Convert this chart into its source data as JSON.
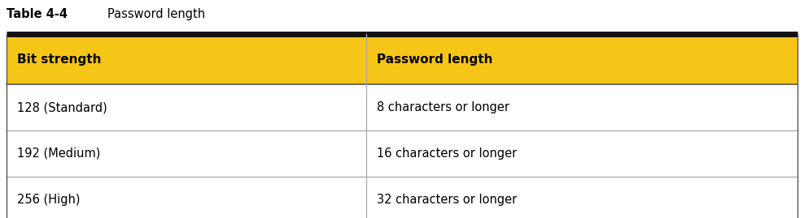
{
  "title_label": "Table 4-4",
  "title_text": "Password length",
  "col1_header": "Bit strength",
  "col2_header": "Password length",
  "rows": [
    [
      "128 (Standard)",
      "8 characters or longer"
    ],
    [
      "192 (Medium)",
      "16 characters or longer"
    ],
    [
      "256 (High)",
      "32 characters or longer"
    ]
  ],
  "header_bg_color": "#F5C518",
  "header_text_color": "#000000",
  "top_border_color": "#111111",
  "row_divider_color": "#aaaaaa",
  "col_divider_color": "#aaaaaa",
  "table_bg_color": "#ffffff",
  "title_label_fontsize": 10.5,
  "title_text_fontsize": 10.5,
  "header_fontsize": 11,
  "row_fontsize": 10.5,
  "col_split": 0.455,
  "fig_width": 9.88,
  "fig_height": 2.69,
  "dpi": 100
}
